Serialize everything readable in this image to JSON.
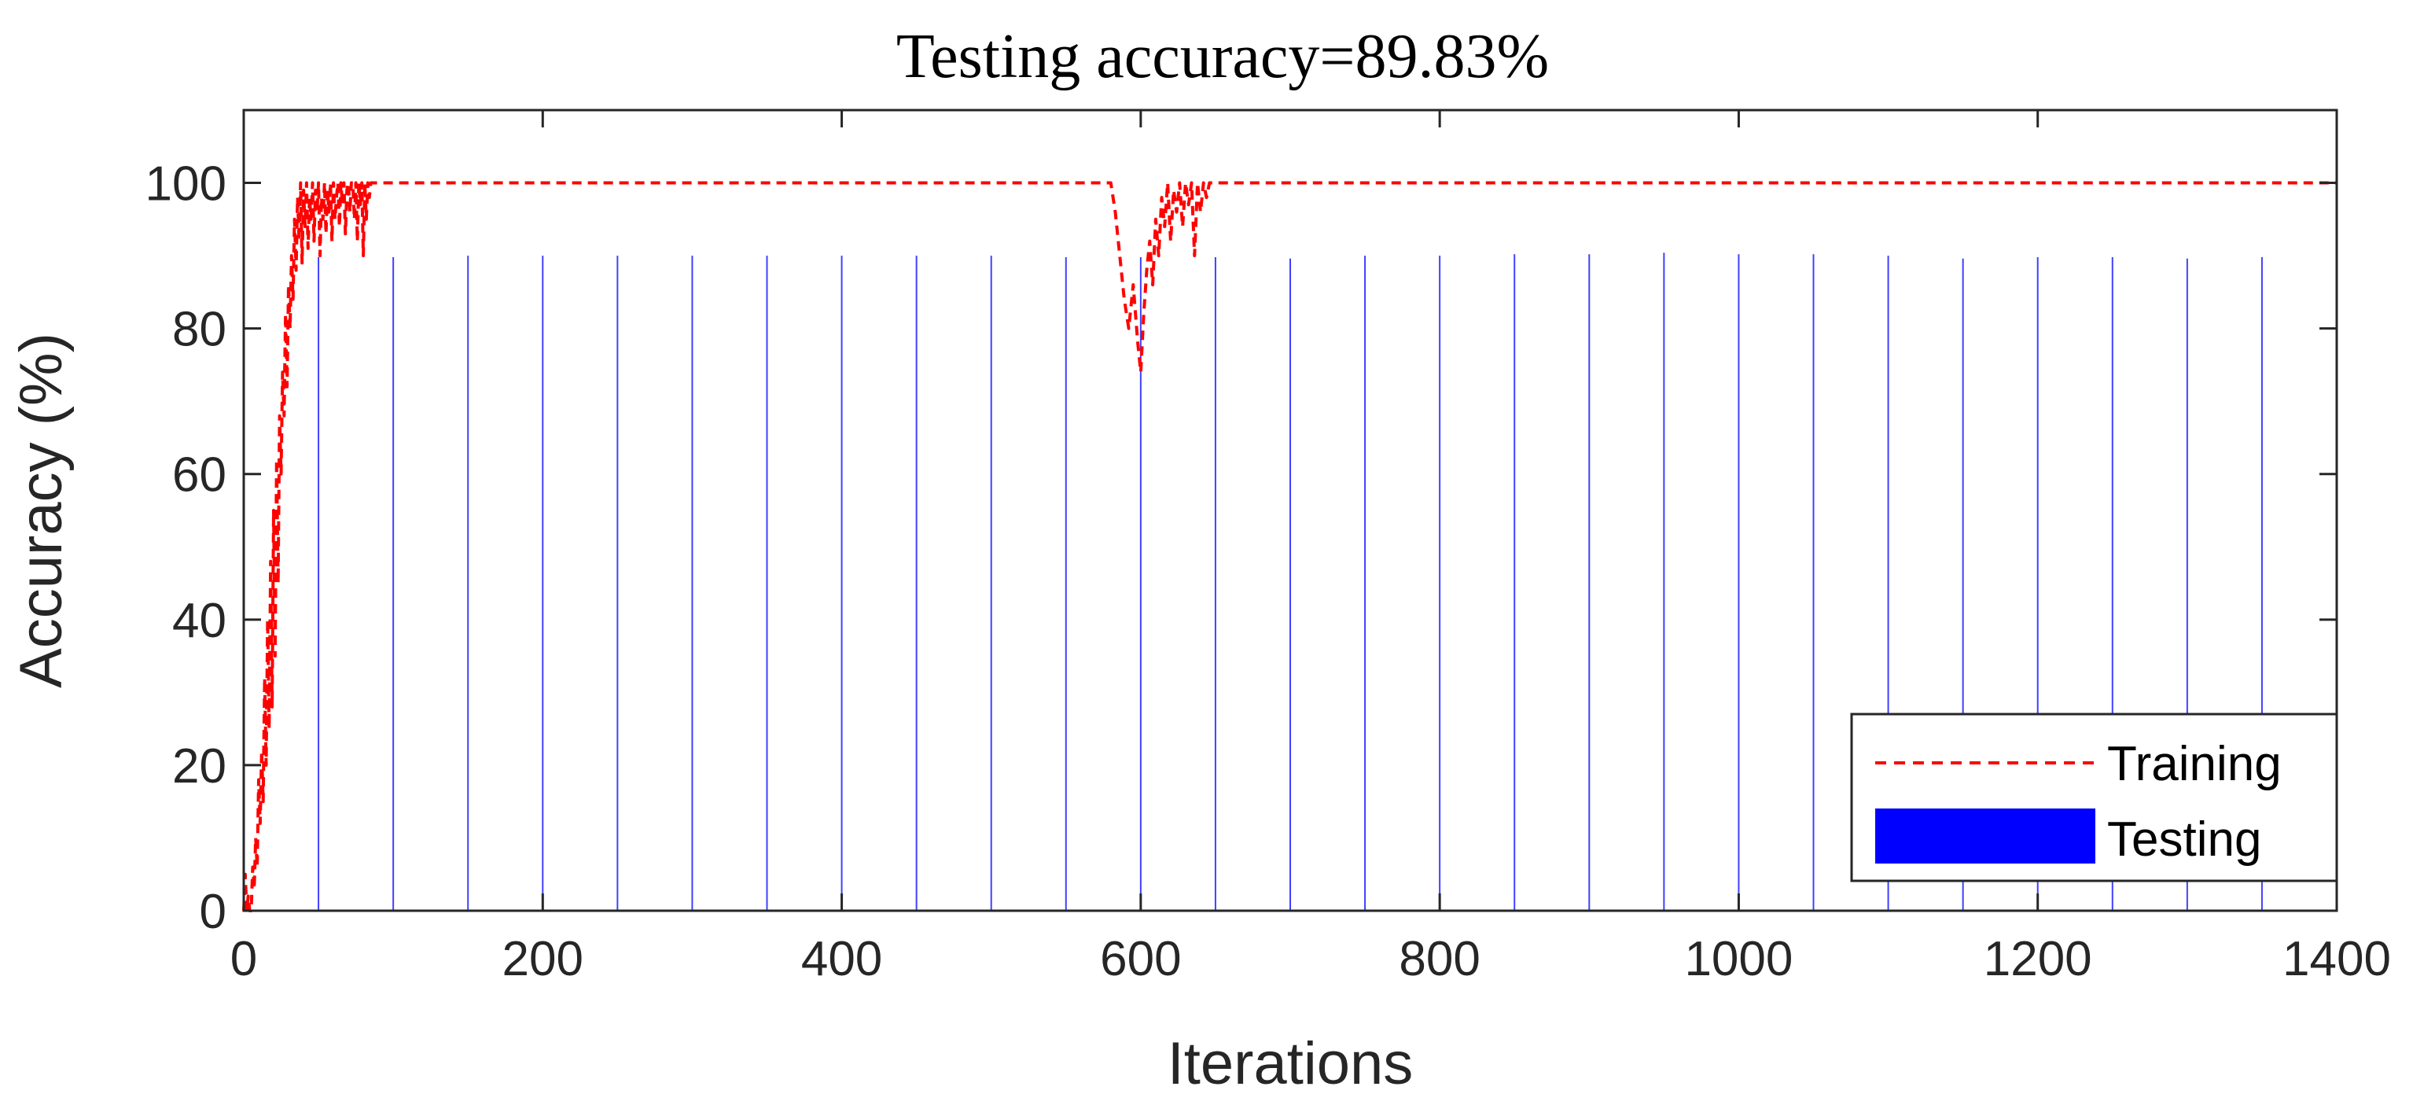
{
  "chart_data": {
    "type": "line",
    "title": "Testing accuracy=89.83%",
    "xlabel": "Iterations",
    "ylabel": "Accuracy (%)",
    "xlim": [
      0,
      1400
    ],
    "ylim": [
      0,
      110
    ],
    "xticks": [
      0,
      200,
      400,
      600,
      800,
      1000,
      1200,
      1400
    ],
    "yticks": [
      0,
      20,
      40,
      60,
      80,
      100
    ],
    "grid": false,
    "legend": {
      "placement": "bottom-right"
    },
    "series": [
      {
        "name": "Training",
        "style": "dashed-line",
        "color": "#ff0000",
        "x": [
          0,
          1,
          2,
          3,
          4,
          5,
          6,
          7,
          8,
          9,
          10,
          11,
          12,
          13,
          14,
          15,
          16,
          17,
          18,
          19,
          20,
          21,
          22,
          23,
          24,
          25,
          26,
          27,
          28,
          29,
          30,
          31,
          32,
          33,
          34,
          35,
          36,
          37,
          38,
          39,
          40,
          41,
          42,
          43,
          44,
          45,
          46,
          47,
          48,
          49,
          50,
          51,
          52,
          53,
          54,
          55,
          56,
          57,
          58,
          59,
          60,
          61,
          62,
          63,
          64,
          65,
          66,
          67,
          68,
          69,
          70,
          71,
          72,
          73,
          74,
          75,
          76,
          77,
          78,
          79,
          80,
          81,
          82,
          83,
          84,
          85,
          86,
          88,
          90,
          95,
          100,
          150,
          200,
          250,
          300,
          350,
          400,
          450,
          500,
          550,
          580,
          583,
          586,
          589,
          592,
          595,
          598,
          600,
          602,
          604,
          606,
          608,
          610,
          612,
          614,
          616,
          618,
          620,
          622,
          624,
          626,
          628,
          630,
          632,
          634,
          636,
          638,
          640,
          642,
          644,
          646,
          648,
          650,
          700,
          800,
          900,
          1000,
          1100,
          1200,
          1300,
          1400
        ],
        "y": [
          0,
          5,
          0,
          2,
          0,
          0,
          6,
          3,
          10,
          6,
          18,
          12,
          22,
          15,
          32,
          20,
          40,
          25,
          48,
          28,
          55,
          35,
          62,
          45,
          68,
          60,
          74,
          68,
          82,
          72,
          86,
          80,
          90,
          84,
          95,
          88,
          98,
          92,
          100,
          89,
          99,
          94,
          100,
          91,
          98,
          95,
          100,
          92,
          99,
          96,
          100,
          90,
          98,
          95,
          100,
          93,
          99,
          96,
          100,
          92,
          100,
          95,
          98,
          100,
          94,
          100,
          97,
          100,
          93,
          99,
          100,
          96,
          100,
          100,
          95,
          100,
          92,
          100,
          97,
          100,
          90,
          100,
          95,
          100,
          98,
          100,
          100,
          100,
          100,
          100,
          100,
          100,
          100,
          100,
          100,
          100,
          100,
          100,
          100,
          100,
          100,
          96,
          90,
          84,
          80,
          86,
          78,
          74,
          82,
          88,
          92,
          86,
          95,
          90,
          98,
          94,
          100,
          92,
          99,
          96,
          100,
          94,
          100,
          97,
          100,
          90,
          100,
          96,
          100,
          98,
          100,
          100,
          100,
          100,
          100,
          100,
          100,
          100,
          100,
          100,
          100
        ]
      },
      {
        "name": "Testing",
        "style": "bar",
        "color": "#0000ff",
        "x": [
          50,
          100,
          150,
          200,
          250,
          300,
          350,
          400,
          450,
          500,
          550,
          600,
          650,
          700,
          750,
          800,
          850,
          900,
          950,
          1000,
          1050,
          1100,
          1150,
          1200,
          1250,
          1300,
          1350,
          1400
        ],
        "y": [
          89.8,
          89.8,
          90.0,
          90.0,
          90.0,
          90.0,
          90.0,
          90.0,
          90.0,
          90.0,
          89.8,
          89.8,
          89.8,
          89.6,
          90.0,
          90.0,
          90.2,
          90.2,
          90.4,
          90.2,
          90.2,
          90.0,
          89.6,
          89.8,
          89.8,
          89.6,
          89.8,
          89.8
        ]
      }
    ]
  }
}
